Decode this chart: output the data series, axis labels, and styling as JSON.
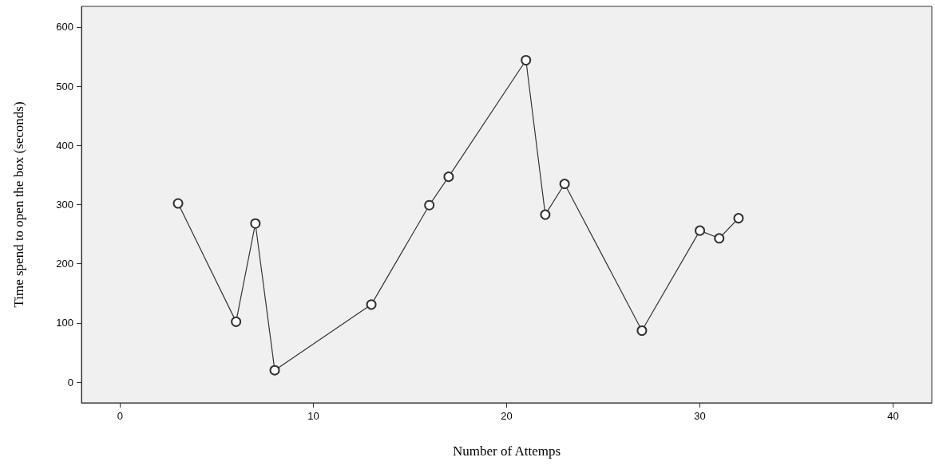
{
  "chart_data": {
    "type": "line",
    "xlabel": "Number of Attemps",
    "ylabel": "Time spend to open the box (seconds)",
    "x": [
      3,
      6,
      7,
      8,
      13,
      16,
      17,
      21,
      22,
      23,
      27,
      30,
      31,
      32
    ],
    "series": [
      {
        "color": "#333333",
        "values": [
          302,
          102,
          268,
          20,
          131,
          299,
          347,
          544,
          283,
          335,
          87,
          256,
          243,
          277
        ]
      }
    ],
    "xlim": [
      -2,
      42
    ],
    "xticks": [
      0,
      10,
      20,
      30,
      40
    ],
    "ylim": [
      -35,
      635
    ],
    "yticks": [
      0,
      100,
      200,
      300,
      400,
      500,
      600
    ],
    "grid": false,
    "marker": "circle",
    "line_style": "solid"
  }
}
